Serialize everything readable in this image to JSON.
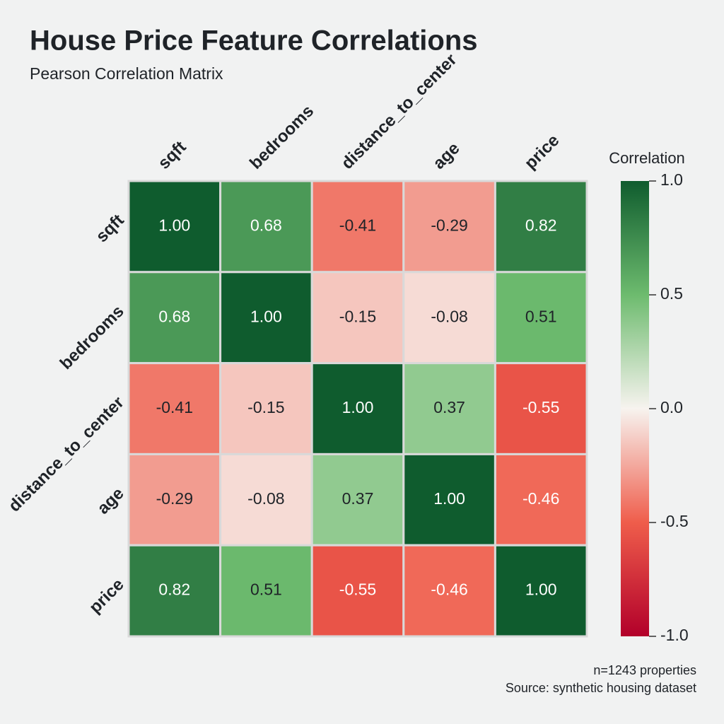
{
  "chart_data": {
    "type": "heatmap",
    "title": "House Price Feature Correlations",
    "subtitle": "Pearson Correlation Matrix",
    "x_categories": [
      "sqft",
      "bedrooms",
      "distance_to_center",
      "age",
      "price"
    ],
    "y_categories": [
      "sqft",
      "bedrooms",
      "distance_to_center",
      "age",
      "price"
    ],
    "values": [
      [
        1,
        0.68,
        -0.41,
        -0.29,
        0.82
      ],
      [
        0.68,
        1,
        -0.15,
        -0.08,
        0.51
      ],
      [
        -0.41,
        -0.15,
        1,
        0.37,
        -0.55
      ],
      [
        -0.29,
        -0.08,
        0.37,
        1,
        -0.46
      ],
      [
        0.82,
        0.51,
        -0.55,
        -0.46,
        1
      ]
    ],
    "value_labels": [
      [
        "1.00",
        "0.68",
        "-0.41",
        "-0.29",
        "0.82"
      ],
      [
        "0.68",
        "1.00",
        "-0.15",
        "-0.08",
        "0.51"
      ],
      [
        "-0.41",
        "-0.15",
        "1.00",
        "0.37",
        "-0.55"
      ],
      [
        "-0.29",
        "-0.08",
        "0.37",
        "1.00",
        "-0.46"
      ],
      [
        "0.82",
        "0.51",
        "-0.55",
        "-0.46",
        "1.00"
      ]
    ],
    "colorbar_label": "Correlation",
    "zlim": [
      -1,
      1
    ],
    "zticks": [
      {
        "value": 1,
        "label": "1.0"
      },
      {
        "value": 0.5,
        "label": "0.5"
      },
      {
        "value": 0,
        "label": "0.0"
      },
      {
        "value": -0.5,
        "label": "-0.5"
      },
      {
        "value": -1,
        "label": "-1.0"
      }
    ],
    "colors": [
      "#b2002a",
      "#ef5d4b",
      "#f7f3ef",
      "#6dbb6e",
      "#0f5c2e"
    ],
    "notes": [
      "n=1243 properties",
      "Source: synthetic housing dataset"
    ]
  }
}
